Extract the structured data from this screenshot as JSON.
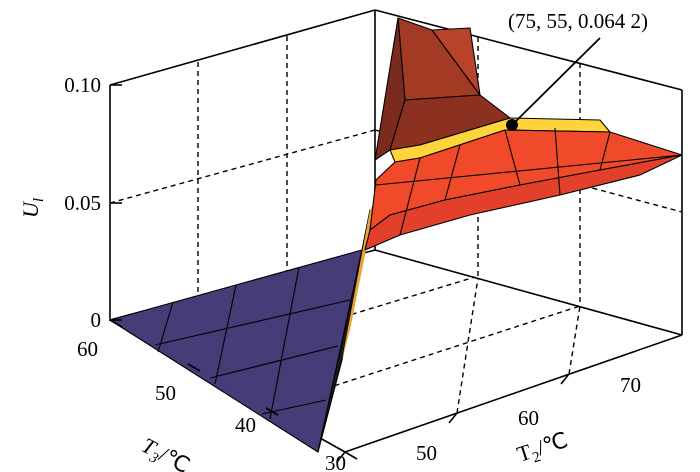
{
  "chart_data": {
    "type": "surface3d",
    "title": "",
    "axes": {
      "x": {
        "label_main": "T",
        "label_sub": "2",
        "label_unit": "/℃",
        "range": [
          45,
          75
        ],
        "ticks": [
          "50",
          "60",
          "70"
        ]
      },
      "y": {
        "label_main": "T",
        "label_sub": "3",
        "label_unit": "/℃",
        "range": [
          30,
          60
        ],
        "ticks": [
          "30",
          "40",
          "50",
          "60"
        ]
      },
      "z": {
        "label_main": "U",
        "label_sub": "l",
        "range": [
          0,
          0.1
        ],
        "ticks": [
          "0",
          "0.05",
          "0.10"
        ]
      }
    },
    "grid": true,
    "regions": [
      {
        "name": "zero plateau",
        "color": "#453c78",
        "z": 0
      },
      {
        "name": "positive surface",
        "colors": [
          "#7a2b1e",
          "#a83a22",
          "#e84a2a",
          "#f5402a",
          "#ffd43a"
        ]
      }
    ],
    "marked_point": {
      "T2": 75,
      "T3": 55,
      "U": 0.0642,
      "label": "(75, 55, 0.064 2)"
    }
  }
}
